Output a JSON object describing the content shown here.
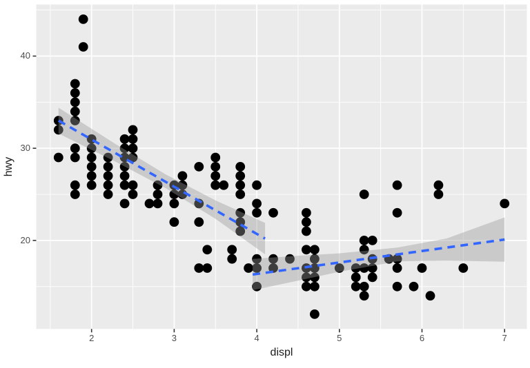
{
  "chart_data": {
    "type": "scatter",
    "title": "",
    "xlabel": "displ",
    "ylabel": "hwy",
    "x_domain": [
      1.33,
      7.27
    ],
    "y_domain": [
      10.4,
      45.6
    ],
    "x_major_ticks": [
      2,
      3,
      4,
      5,
      6,
      7
    ],
    "x_minor_ticks": [
      1.5,
      2.5,
      3.5,
      4.5,
      5.5,
      6.5
    ],
    "y_major_ticks": [
      20,
      30,
      40
    ],
    "y_minor_ticks": [
      15,
      25,
      35,
      45
    ],
    "x_tick_labels": [
      "2",
      "3",
      "4",
      "5",
      "6",
      "7"
    ],
    "y_tick_labels": [
      "20",
      "30",
      "40"
    ],
    "grid": true,
    "legend": false,
    "points": [
      [
        1.6,
        33
      ],
      [
        1.6,
        32
      ],
      [
        1.6,
        29
      ],
      [
        1.8,
        37
      ],
      [
        1.8,
        36
      ],
      [
        1.8,
        35
      ],
      [
        1.8,
        34
      ],
      [
        1.8,
        33
      ],
      [
        1.8,
        30
      ],
      [
        1.8,
        29
      ],
      [
        1.8,
        26
      ],
      [
        1.8,
        25
      ],
      [
        1.9,
        44
      ],
      [
        1.9,
        41
      ],
      [
        2.0,
        31
      ],
      [
        2.0,
        30
      ],
      [
        2.0,
        29
      ],
      [
        2.0,
        28
      ],
      [
        2.0,
        27
      ],
      [
        2.0,
        26
      ],
      [
        2.2,
        29
      ],
      [
        2.2,
        28
      ],
      [
        2.2,
        27
      ],
      [
        2.2,
        26
      ],
      [
        2.2,
        25
      ],
      [
        2.4,
        31
      ],
      [
        2.4,
        30
      ],
      [
        2.4,
        29
      ],
      [
        2.4,
        28
      ],
      [
        2.4,
        27
      ],
      [
        2.4,
        26
      ],
      [
        2.4,
        24
      ],
      [
        2.5,
        32
      ],
      [
        2.5,
        31
      ],
      [
        2.5,
        30
      ],
      [
        2.5,
        29
      ],
      [
        2.5,
        26
      ],
      [
        2.5,
        25
      ],
      [
        2.7,
        24
      ],
      [
        2.8,
        26
      ],
      [
        2.8,
        25
      ],
      [
        2.8,
        24
      ],
      [
        3.0,
        26
      ],
      [
        3.0,
        25
      ],
      [
        3.0,
        24
      ],
      [
        3.0,
        22
      ],
      [
        3.1,
        27
      ],
      [
        3.1,
        26
      ],
      [
        3.1,
        25
      ],
      [
        3.3,
        28
      ],
      [
        3.3,
        24
      ],
      [
        3.3,
        22
      ],
      [
        3.3,
        17
      ],
      [
        3.4,
        19
      ],
      [
        3.4,
        17
      ],
      [
        3.5,
        29
      ],
      [
        3.5,
        28
      ],
      [
        3.5,
        27
      ],
      [
        3.5,
        26
      ],
      [
        3.6,
        26
      ],
      [
        3.7,
        19
      ],
      [
        3.7,
        18
      ],
      [
        3.8,
        28
      ],
      [
        3.8,
        27
      ],
      [
        3.8,
        26
      ],
      [
        3.8,
        25
      ],
      [
        3.8,
        23
      ],
      [
        3.8,
        22
      ],
      [
        3.8,
        21
      ],
      [
        3.9,
        17
      ],
      [
        4.0,
        26
      ],
      [
        4.0,
        24
      ],
      [
        4.0,
        23
      ],
      [
        4.0,
        18
      ],
      [
        4.0,
        17
      ],
      [
        4.0,
        15
      ],
      [
        4.2,
        23
      ],
      [
        4.2,
        18
      ],
      [
        4.2,
        17
      ],
      [
        4.4,
        18
      ],
      [
        4.6,
        23
      ],
      [
        4.6,
        22
      ],
      [
        4.6,
        21
      ],
      [
        4.6,
        19
      ],
      [
        4.6,
        17
      ],
      [
        4.6,
        16
      ],
      [
        4.6,
        15
      ],
      [
        4.7,
        19
      ],
      [
        4.7,
        18
      ],
      [
        4.7,
        17
      ],
      [
        4.7,
        16
      ],
      [
        4.7,
        15
      ],
      [
        4.7,
        12
      ],
      [
        5.0,
        17
      ],
      [
        5.2,
        17
      ],
      [
        5.2,
        16
      ],
      [
        5.2,
        15
      ],
      [
        5.3,
        25
      ],
      [
        5.3,
        20
      ],
      [
        5.3,
        19
      ],
      [
        5.3,
        17
      ],
      [
        5.3,
        15
      ],
      [
        5.3,
        14
      ],
      [
        5.4,
        20
      ],
      [
        5.4,
        18
      ],
      [
        5.4,
        17
      ],
      [
        5.4,
        16
      ],
      [
        5.6,
        18
      ],
      [
        5.7,
        26
      ],
      [
        5.7,
        23
      ],
      [
        5.7,
        18
      ],
      [
        5.7,
        17
      ],
      [
        5.7,
        15
      ],
      [
        5.9,
        15
      ],
      [
        6.0,
        17
      ],
      [
        6.1,
        14
      ],
      [
        6.2,
        26
      ],
      [
        6.2,
        25
      ],
      [
        6.5,
        17
      ],
      [
        7.0,
        24
      ]
    ],
    "smooths": [
      {
        "name": "left-linear-fit",
        "line": {
          "x1": 1.6,
          "y1": 33.0,
          "x2": 4.1,
          "y2": 20.2
        },
        "ribbon": {
          "x": [
            1.6,
            2.3,
            2.9,
            3.5,
            4.1
          ],
          "upper": [
            34.4,
            30.4,
            27.15,
            24.35,
            21.9
          ],
          "lower": [
            31.6,
            28.5,
            25.65,
            22.35,
            18.5
          ]
        }
      },
      {
        "name": "right-linear-fit",
        "line": {
          "x1": 3.95,
          "y1": 16.3,
          "x2": 7.0,
          "y2": 20.1
        },
        "ribbon": {
          "x": [
            3.95,
            4.5,
            5.0,
            5.7,
            6.3,
            7.0
          ],
          "upper": [
            18.0,
            18.34,
            18.6,
            19.23,
            20.22,
            22.5
          ],
          "lower": [
            14.6,
            15.64,
            16.6,
            17.73,
            17.82,
            17.7
          ]
        }
      }
    ],
    "style": {
      "panel_bg": "#EBEBEB",
      "grid_color": "#FFFFFF",
      "point_color": "#000000",
      "smooth_line_color": "#3366FF",
      "ribbon_color": "rgba(153,153,153,0.4)",
      "tick_mark_color": "#333333",
      "tick_label_color": "#4d4d4d",
      "axis_title_color": "#1a1a1a"
    }
  }
}
